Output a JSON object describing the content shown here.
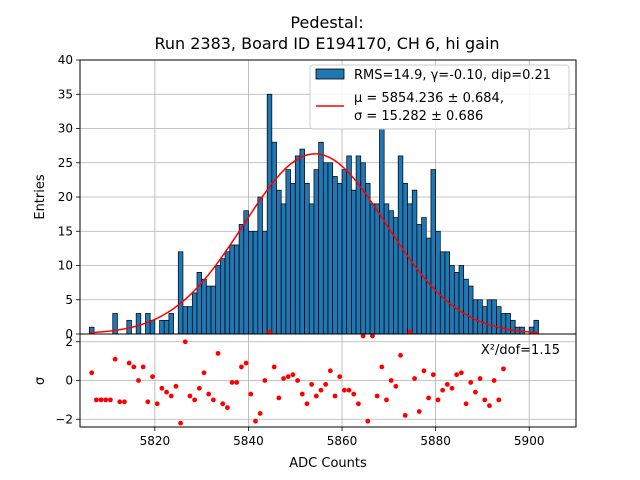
{
  "chart_data": [
    {
      "type": "bar",
      "name": "histogram",
      "title_line1": "Pedestal:",
      "title_line2": "Run 2383, Board ID E194170, CH 6, hi gain",
      "ylabel": "Entries",
      "xlim": [
        5804,
        5910
      ],
      "ylim": [
        0,
        40
      ],
      "yticks": [
        0,
        5,
        10,
        15,
        20,
        25,
        30,
        35,
        40
      ],
      "grid": true,
      "legend_placement": "top-right",
      "bar_color": "#1f77b4",
      "fit_color": "#ff0000",
      "legend": {
        "hist_label": "RMS=14.9, γ=-0.10, dip=0.21",
        "fit_label_line1": "μ = 5854.236 ± 0.684,",
        "fit_label_line2": "σ = 15.282 ± 0.686"
      },
      "fit": {
        "mu": 5854.236,
        "sigma": 15.282,
        "amplitude": 26.3
      },
      "bin_start": 5806,
      "bin_width": 1,
      "values": [
        1,
        0,
        0,
        0,
        0,
        3,
        0,
        0,
        2,
        0,
        3,
        0,
        3,
        2,
        0,
        2,
        2,
        3,
        0,
        12,
        4,
        4,
        6,
        9,
        8,
        7,
        7,
        10,
        11,
        12,
        13,
        13,
        16,
        18,
        15,
        15,
        20,
        15,
        35,
        28,
        21,
        19,
        24,
        22,
        26,
        27,
        22,
        19,
        24,
        28,
        25,
        25,
        23,
        22,
        24,
        26,
        21,
        26,
        25,
        22,
        19,
        19,
        30,
        19,
        18,
        17,
        26,
        22,
        19,
        21,
        16,
        17,
        14,
        24,
        15,
        12,
        12,
        10,
        9,
        10,
        8,
        7,
        5,
        5,
        4,
        5,
        5,
        4,
        3,
        3,
        2,
        1,
        1,
        0,
        1,
        2
      ]
    },
    {
      "type": "scatter",
      "name": "residuals",
      "ylabel": "σ",
      "xlabel": "ADC Counts",
      "xlim": [
        5804,
        5910
      ],
      "ylim": [
        -2.4,
        2.4
      ],
      "yticks": [
        -2,
        0,
        2
      ],
      "xticks": [
        5820,
        5840,
        5860,
        5880,
        5900
      ],
      "grid": true,
      "point_color": "#ff0000",
      "annotation": "X²/dof=1.15",
      "points": [
        [
          5806,
          0.4
        ],
        [
          5807,
          -1.0
        ],
        [
          5808,
          -1.0
        ],
        [
          5809,
          -1.0
        ],
        [
          5810,
          -1.0
        ],
        [
          5811,
          1.1
        ],
        [
          5812,
          -1.1
        ],
        [
          5813,
          -1.1
        ],
        [
          5814,
          0.9
        ],
        [
          5815,
          0.7
        ],
        [
          5816,
          0.0
        ],
        [
          5817,
          0.7
        ],
        [
          5818,
          -1.1
        ],
        [
          5819,
          0.2
        ],
        [
          5820,
          -1.2
        ],
        [
          5821,
          -0.4
        ],
        [
          5822,
          -0.6
        ],
        [
          5823,
          -0.8
        ],
        [
          5824,
          -0.3
        ],
        [
          5825,
          -2.2
        ],
        [
          5826,
          2.0
        ],
        [
          5827,
          -0.8
        ],
        [
          5828,
          -1.0
        ],
        [
          5829,
          -0.4
        ],
        [
          5830,
          0.4
        ],
        [
          5831,
          -0.7
        ],
        [
          5832,
          -1.0
        ],
        [
          5833,
          1.4
        ],
        [
          5834,
          -1.2
        ],
        [
          5835,
          -1.4
        ],
        [
          5836,
          -0.1
        ],
        [
          5837,
          -0.1
        ],
        [
          5838,
          0.7
        ],
        [
          5839,
          0.9
        ],
        [
          5840,
          -0.7
        ],
        [
          5841,
          -2.1
        ],
        [
          5842,
          -1.7
        ],
        [
          5843,
          0.0
        ],
        [
          5844,
          2.5
        ],
        [
          5845,
          0.7
        ],
        [
          5846,
          -0.9
        ],
        [
          5847,
          0.1
        ],
        [
          5848,
          0.2
        ],
        [
          5849,
          0.3
        ],
        [
          5850,
          0.0
        ],
        [
          5851,
          -0.7
        ],
        [
          5852,
          -1.2
        ],
        [
          5853,
          -0.2
        ],
        [
          5854,
          -0.8
        ],
        [
          5855,
          -0.5
        ],
        [
          5856,
          -0.2
        ],
        [
          5857,
          0.5
        ],
        [
          5858,
          -0.8
        ],
        [
          5859,
          0.2
        ],
        [
          5860,
          -0.5
        ],
        [
          5861,
          -0.5
        ],
        [
          5862,
          -0.7
        ],
        [
          5863,
          -1.2
        ],
        [
          5864,
          2.3
        ],
        [
          5865,
          -2.1
        ],
        [
          5866,
          2.3
        ],
        [
          5867,
          -0.8
        ],
        [
          5868,
          0.7
        ],
        [
          5869,
          -1.0
        ],
        [
          5870,
          0.0
        ],
        [
          5871,
          -0.3
        ],
        [
          5872,
          1.3
        ],
        [
          5873,
          -1.8
        ],
        [
          5874,
          2.5
        ],
        [
          5875,
          0.1
        ],
        [
          5876,
          -1.6
        ],
        [
          5877,
          0.5
        ],
        [
          5878,
          -0.9
        ],
        [
          5879,
          0.3
        ],
        [
          5880,
          -1.0
        ],
        [
          5881,
          -0.5
        ],
        [
          5882,
          -0.2
        ],
        [
          5883,
          -0.4
        ],
        [
          5884,
          0.3
        ],
        [
          5885,
          0.4
        ],
        [
          5886,
          -1.2
        ],
        [
          5887,
          -0.1
        ],
        [
          5888,
          -0.6
        ],
        [
          5889,
          0.1
        ],
        [
          5890,
          -1.0
        ],
        [
          5891,
          -1.3
        ],
        [
          5892,
          0.0
        ],
        [
          5893,
          -1.0
        ],
        [
          5894,
          0.6
        ]
      ]
    }
  ]
}
